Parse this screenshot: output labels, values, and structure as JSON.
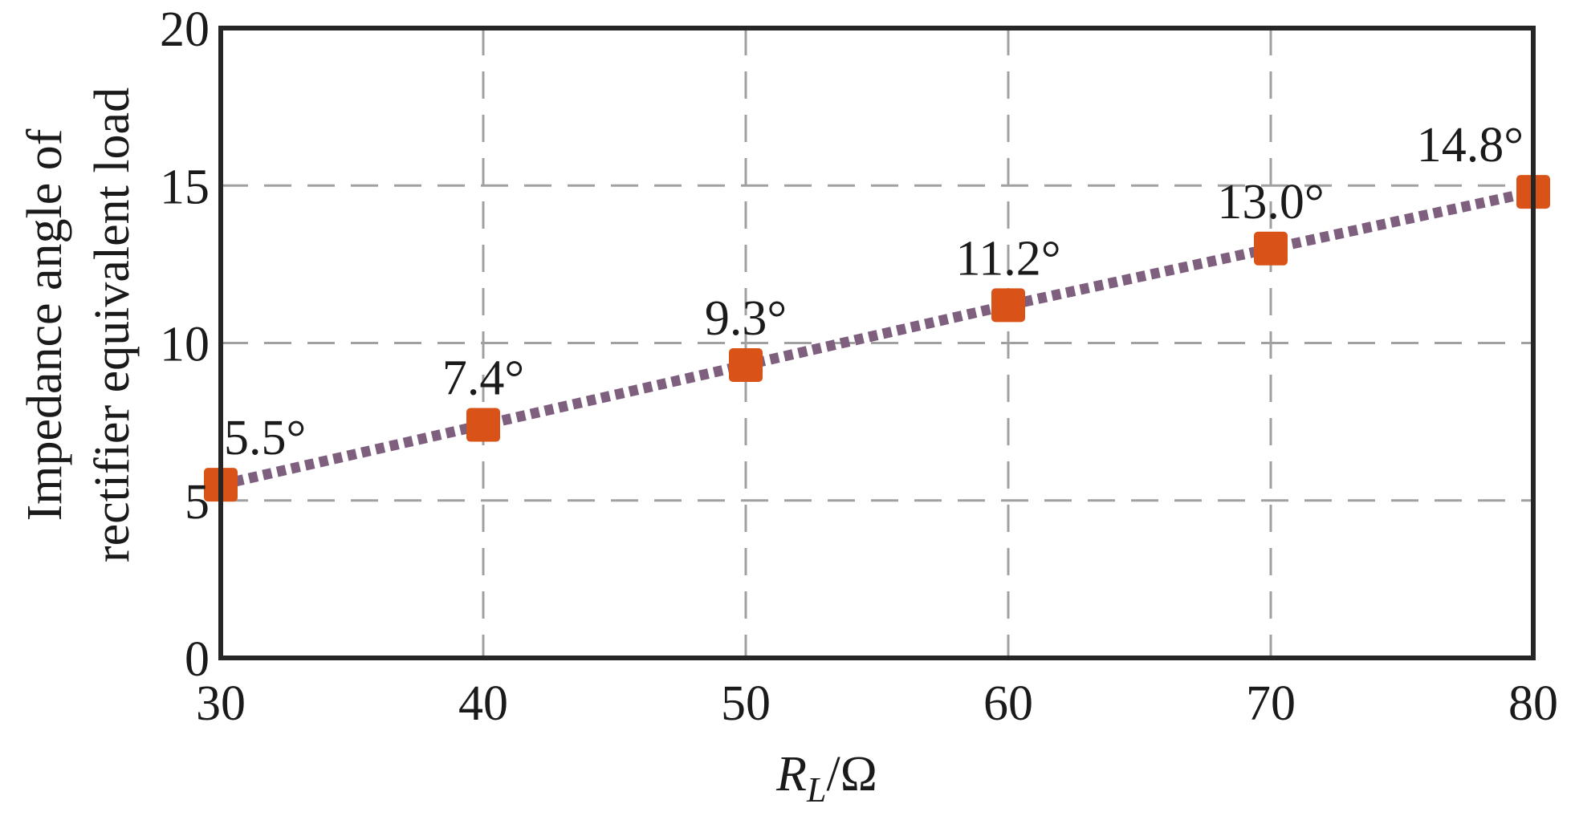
{
  "chart_data": {
    "type": "line",
    "x": [
      30,
      40,
      50,
      60,
      70,
      80
    ],
    "series": [
      {
        "values": [
          5.5,
          7.4,
          9.3,
          11.2,
          13.0,
          14.8
        ],
        "point_labels": [
          "5.5°",
          "7.4°",
          "9.3°",
          "11.2°",
          "13.0°",
          "14.8°"
        ]
      }
    ],
    "xlim": [
      30,
      80
    ],
    "ylim": [
      0,
      20
    ],
    "x_ticks": [
      30,
      40,
      50,
      60,
      70,
      80
    ],
    "y_ticks": [
      0,
      5,
      10,
      15,
      20
    ],
    "x_tick_labels": [
      "30",
      "40",
      "50",
      "60",
      "70",
      "80"
    ],
    "y_tick_labels": [
      "0",
      "5",
      "10",
      "15",
      "20"
    ],
    "xlabel": {
      "main": "R",
      "sub": "L",
      "unit": "/Ω"
    },
    "ylabel_lines": [
      "Impedance angle of",
      "rectifier equivalent load"
    ],
    "grid": true,
    "colors": {
      "line": "#7e5f7e",
      "marker": "#d95319",
      "grid": "#a0a0a0",
      "axes": "#262626"
    }
  }
}
